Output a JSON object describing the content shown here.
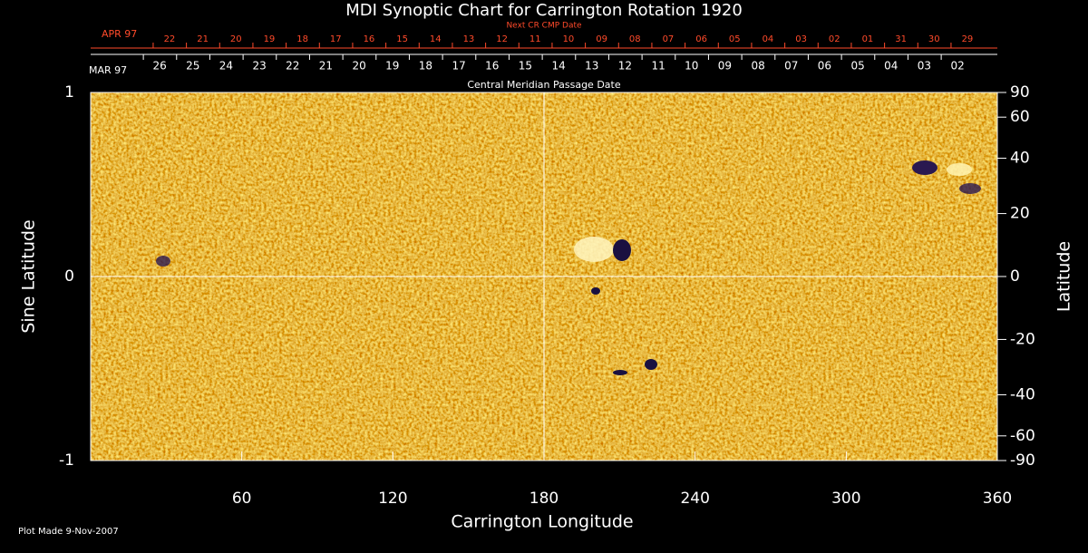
{
  "chart_data": {
    "type": "synoptic-map",
    "title": "MDI Synoptic Chart for Carrington Rotation 1920",
    "x_label": "Carrington Longitude",
    "y_label": "Sine Latitude",
    "y2_label": "Latitude",
    "footer": "Plot Made  9-Nov-2007",
    "xlim": [
      0,
      360
    ],
    "xticks": [
      60,
      120,
      180,
      240,
      300,
      360
    ],
    "ylim": [
      -1,
      1
    ],
    "yticks": [
      -1,
      0,
      1
    ],
    "y2lim": [
      -90,
      90
    ],
    "y2scale": "sine",
    "y2ticks": [
      90,
      60,
      40,
      20,
      0,
      -20,
      -40,
      -60,
      -90
    ],
    "crosshair_x": 180,
    "crosshair_y": 0,
    "date_axes": [
      {
        "label": "Central Meridian Passage Date",
        "month": "MAR 97",
        "color": "#ffffff",
        "days": [
          "26",
          "25",
          "24",
          "23",
          "22",
          "21",
          "20",
          "19",
          "18",
          "17",
          "16",
          "15",
          "14",
          "13",
          "12",
          "11",
          "10",
          "09",
          "08",
          "07",
          "06",
          "05",
          "04",
          "03",
          "02"
        ],
        "lon": [
          27.4,
          40.6,
          53.8,
          67.0,
          80.2,
          93.4,
          106.6,
          119.8,
          133.0,
          146.2,
          159.4,
          172.6,
          185.8,
          199.0,
          212.2,
          225.4,
          238.6,
          251.8,
          265.0,
          278.2,
          291.4,
          304.6,
          317.8,
          331.0,
          344.2
        ]
      },
      {
        "label": "Next CR CMP Date",
        "month": "APR 97",
        "color": "#ff4a2a",
        "days": [
          "22",
          "21",
          "20",
          "19",
          "18",
          "17",
          "16",
          "15",
          "14",
          "13",
          "12",
          "11",
          "10",
          "09",
          "08",
          "07",
          "06",
          "05",
          "04",
          "03",
          "02",
          "01",
          "31",
          "30",
          "29"
        ],
        "lon": [
          31.3,
          44.5,
          57.7,
          70.9,
          84.1,
          97.3,
          110.5,
          123.7,
          136.9,
          150.1,
          163.3,
          176.5,
          189.7,
          202.9,
          216.1,
          229.3,
          242.5,
          255.7,
          268.9,
          282.1,
          295.3,
          308.5,
          321.7,
          334.9,
          348.1
        ]
      }
    ]
  }
}
